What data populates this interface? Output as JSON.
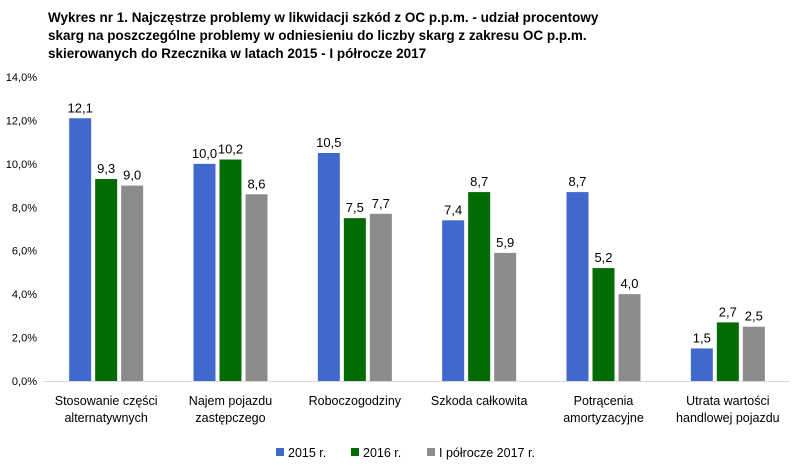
{
  "title_lines": [
    "Wykres nr 1. Najczęstrze problemy w likwidacji szkód z OC p.p.m. - udział procentowy",
    "skarg na poszczególne problemy w odniesieniu do liczby skarg z zakresu OC  p.p.m.",
    "skierowanych do Rzecznika w latach 2015 - I półrocze 2017"
  ],
  "chart_data": {
    "type": "bar",
    "title": "Wykres nr 1. Najczęstrze problemy w likwidacji szkód z OC p.p.m. - udział procentowy skarg na poszczególne problemy w odniesieniu do liczby skarg z zakresu OC  p.p.m. skierowanych do Rzecznika w latach 2015 - I półrocze 2017",
    "categories": [
      [
        "Stosowanie części",
        "alternatywnych"
      ],
      [
        "Najem pojazdu",
        "zastępczego"
      ],
      [
        "Roboczogodziny"
      ],
      [
        "Szkoda całkowita"
      ],
      [
        "Potrącenia",
        "amortyzacyjne"
      ],
      [
        "Utrata wartości",
        "handlowej pojazdu"
      ]
    ],
    "series": [
      {
        "name": "2015 r.",
        "color": "#4169CD",
        "values": [
          12.1,
          10.0,
          10.5,
          7.4,
          8.7,
          1.5
        ]
      },
      {
        "name": "2016 r.",
        "color": "#036B03",
        "values": [
          9.3,
          10.2,
          7.5,
          8.7,
          5.2,
          2.7
        ]
      },
      {
        "name": "I półrocze 2017 r.",
        "color": "#8C8C8C",
        "values": [
          9.0,
          8.6,
          7.7,
          5.9,
          4.0,
          2.5
        ]
      }
    ],
    "ylim": [
      0,
      14
    ],
    "ytick_step": 2,
    "ytick_labels": [
      "0,0%",
      "2,0%",
      "4,0%",
      "6,0%",
      "8,0%",
      "10,0%",
      "12,0%",
      "14,0%"
    ],
    "xlabel": "",
    "ylabel": "",
    "grid": false,
    "legend_position": "bottom"
  }
}
